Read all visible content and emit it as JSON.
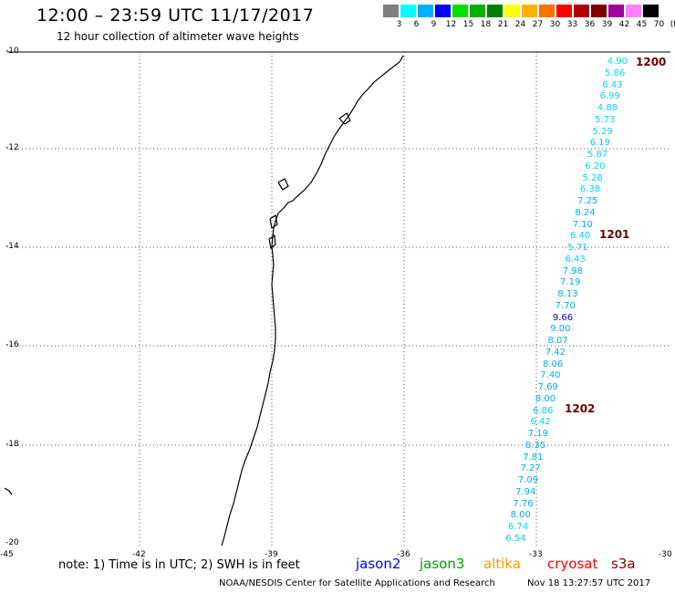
{
  "title": "12:00 – 23:59 UTC 11/17/2017",
  "subtitle": "12 hour collection of altimeter wave heights",
  "color_scale": {
    "labels": [
      "3",
      "6",
      "9",
      "12",
      "15",
      "18",
      "21",
      "24",
      "27",
      "30",
      "33",
      "36",
      "39",
      "42",
      "45",
      "70",
      "(ft)"
    ],
    "colors": [
      "#7f7f7f",
      "#00ffff",
      "#00b0ff",
      "#0000ff",
      "#00e000",
      "#00b000",
      "#008000",
      "#ffff00",
      "#ffb000",
      "#ff7000",
      "#ff0000",
      "#b00000",
      "#800000",
      "#a000a0",
      "#ff80ff",
      "#000000"
    ]
  },
  "axes": {
    "y_labels": [
      "-10",
      "-12",
      "-14",
      "-16",
      "-18",
      "-20"
    ],
    "x_labels": [
      "-45",
      "-42",
      "-39",
      "-36",
      "-33",
      "-30"
    ]
  },
  "wave_heights": [
    {
      "v": "4.90",
      "c": "#00d8e8"
    },
    {
      "v": "5.86",
      "c": "#00d8e8"
    },
    {
      "v": "6.43",
      "c": "#00d8e8"
    },
    {
      "v": "6.99",
      "c": "#00d8e8"
    },
    {
      "v": "4.88",
      "c": "#00d8e8"
    },
    {
      "v": "5.73",
      "c": "#00d8e8"
    },
    {
      "v": "5.29",
      "c": "#00d8e8"
    },
    {
      "v": "6.19",
      "c": "#00d8e8"
    },
    {
      "v": "5.87",
      "c": "#00d8e8"
    },
    {
      "v": "6.20",
      "c": "#00d8e8"
    },
    {
      "v": "5.28",
      "c": "#00d8e8"
    },
    {
      "v": "6.38",
      "c": "#00d8e8"
    },
    {
      "v": "7.25",
      "c": "#00b0e0"
    },
    {
      "v": "8.24",
      "c": "#00b0e0"
    },
    {
      "v": "7.10",
      "c": "#00b0e0"
    },
    {
      "v": "6.40",
      "c": "#00d8e8"
    },
    {
      "v": "5.71",
      "c": "#00d8e8"
    },
    {
      "v": "6.43",
      "c": "#00d8e8"
    },
    {
      "v": "7.98",
      "c": "#00b0e0"
    },
    {
      "v": "7.19",
      "c": "#00b0e0"
    },
    {
      "v": "8.13",
      "c": "#00b0e0"
    },
    {
      "v": "7.70",
      "c": "#00b0e0"
    },
    {
      "v": "9.66",
      "c": "#0000c8"
    },
    {
      "v": "9.00",
      "c": "#00b0e0"
    },
    {
      "v": "8.07",
      "c": "#00b0e0"
    },
    {
      "v": "7.42",
      "c": "#00b0e0"
    },
    {
      "v": "8.06",
      "c": "#00b0e0"
    },
    {
      "v": "7.40",
      "c": "#00b0e0"
    },
    {
      "v": "7.69",
      "c": "#00b0e0"
    },
    {
      "v": "8.00",
      "c": "#00b0e0"
    },
    {
      "v": "6.86",
      "c": "#00d8e8"
    },
    {
      "v": "6.42",
      "c": "#00d8e8"
    },
    {
      "v": "7.19",
      "c": "#00b0e0"
    },
    {
      "v": "8.35",
      "c": "#00b0e0"
    },
    {
      "v": "7.81",
      "c": "#00b0e0"
    },
    {
      "v": "7.27",
      "c": "#00b0e0"
    },
    {
      "v": "7.09",
      "c": "#00b0e0"
    },
    {
      "v": "7.94",
      "c": "#00b0e0"
    },
    {
      "v": "7.76",
      "c": "#00b0e0"
    },
    {
      "v": "8.00",
      "c": "#00b0e0"
    },
    {
      "v": "6.74",
      "c": "#00d8e8"
    },
    {
      "v": "6.54",
      "c": "#00d8e8"
    }
  ],
  "pass_labels": [
    "1200",
    "1201",
    "1202"
  ],
  "note": "note:  1) Time is in UTC;  2) SWH is in feet",
  "satellites": [
    {
      "name": "jason2",
      "color": "#0000ff"
    },
    {
      "name": "jason3",
      "color": "#00a000"
    },
    {
      "name": "altika",
      "color": "#ff9a00"
    },
    {
      "name": "cryosat",
      "color": "#ff0000"
    },
    {
      "name": "s3a",
      "color": "#8b0000"
    }
  ],
  "credit": "NOAA/NESDIS Center for Satellite Applications and Research",
  "timestamp": "Nov 18 13:27:57 UTC 2017"
}
